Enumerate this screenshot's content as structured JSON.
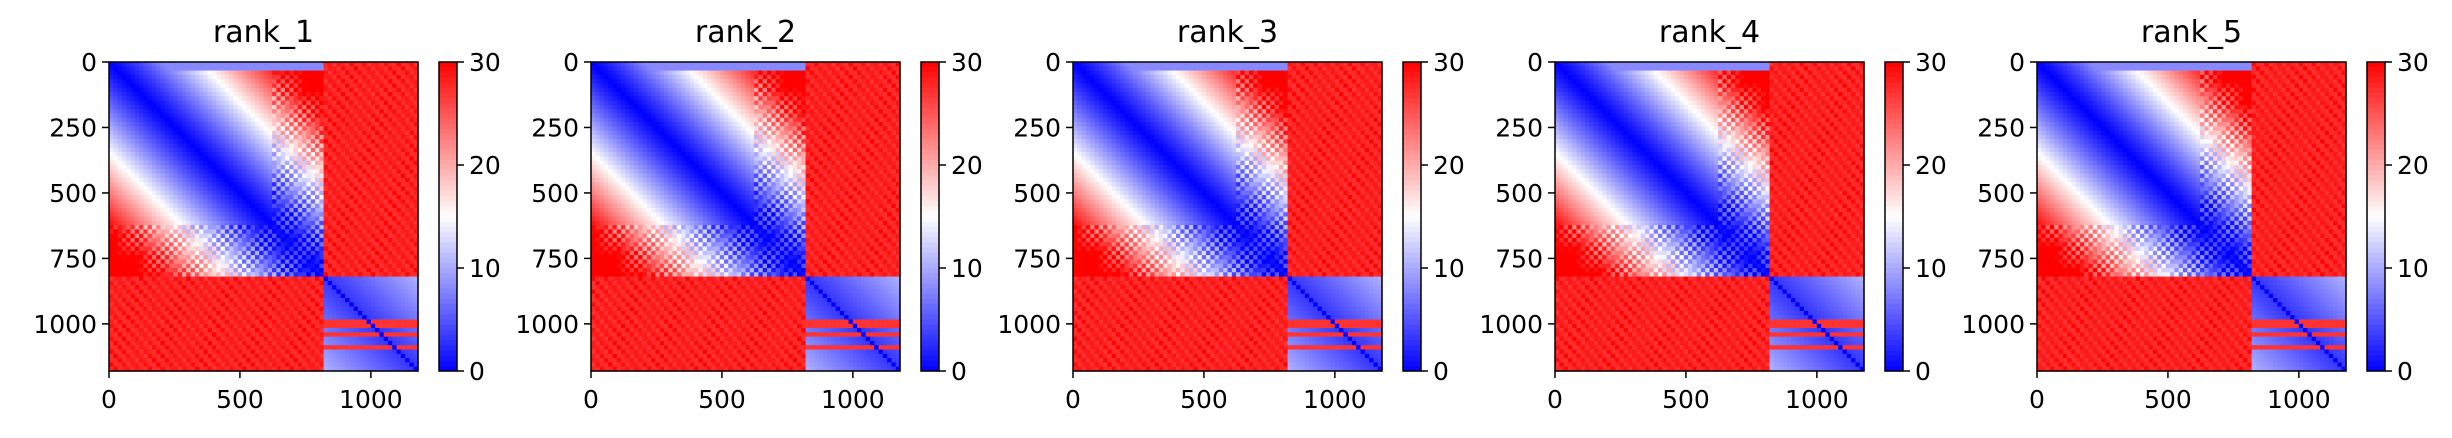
{
  "chart_data": [
    {
      "type": "heatmap",
      "title": "rank_1",
      "xlim": [
        0,
        1180
      ],
      "ylim": [
        1180,
        0
      ],
      "xticks": [
        0,
        500,
        1000
      ],
      "yticks": [
        0,
        250,
        500,
        750,
        1000
      ],
      "colorbar": {
        "min": 0,
        "max": 30,
        "ticks": [
          0,
          10,
          20,
          30
        ],
        "colormap": "bwr"
      },
      "structure": {
        "block_boundary": 820,
        "matrix_size": 1180,
        "diagonal_value": 0,
        "cross_block_value": 30,
        "bright_bands": [
          1000,
          1045,
          1090
        ]
      }
    },
    {
      "type": "heatmap",
      "title": "rank_2",
      "xlim": [
        0,
        1180
      ],
      "ylim": [
        1180,
        0
      ],
      "xticks": [
        0,
        500,
        1000
      ],
      "yticks": [
        0,
        250,
        500,
        750,
        1000
      ],
      "colorbar": {
        "min": 0,
        "max": 30,
        "ticks": [
          0,
          10,
          20,
          30
        ],
        "colormap": "bwr"
      },
      "structure": {
        "block_boundary": 820,
        "matrix_size": 1180,
        "diagonal_value": 0,
        "cross_block_value": 30,
        "bright_bands": [
          1000,
          1045,
          1090
        ]
      }
    },
    {
      "type": "heatmap",
      "title": "rank_3",
      "xlim": [
        0,
        1180
      ],
      "ylim": [
        1180,
        0
      ],
      "xticks": [
        0,
        500,
        1000
      ],
      "yticks": [
        0,
        250,
        500,
        750,
        1000
      ],
      "colorbar": {
        "min": 0,
        "max": 30,
        "ticks": [
          0,
          10,
          20,
          30
        ],
        "colormap": "bwr"
      },
      "structure": {
        "block_boundary": 820,
        "matrix_size": 1180,
        "diagonal_value": 0,
        "cross_block_value": 30,
        "bright_bands": [
          1000,
          1045,
          1090
        ]
      }
    },
    {
      "type": "heatmap",
      "title": "rank_4",
      "xlim": [
        0,
        1180
      ],
      "ylim": [
        1180,
        0
      ],
      "xticks": [
        0,
        500,
        1000
      ],
      "yticks": [
        0,
        250,
        500,
        750,
        1000
      ],
      "colorbar": {
        "min": 0,
        "max": 30,
        "ticks": [
          0,
          10,
          20,
          30
        ],
        "colormap": "bwr"
      },
      "structure": {
        "block_boundary": 820,
        "matrix_size": 1180,
        "diagonal_value": 0,
        "cross_block_value": 30,
        "bright_bands": [
          1000,
          1045,
          1090
        ]
      }
    },
    {
      "type": "heatmap",
      "title": "rank_5",
      "xlim": [
        0,
        1180
      ],
      "ylim": [
        1180,
        0
      ],
      "xticks": [
        0,
        500,
        1000
      ],
      "yticks": [
        0,
        250,
        500,
        750,
        1000
      ],
      "colorbar": {
        "min": 0,
        "max": 30,
        "ticks": [
          0,
          10,
          20,
          30
        ],
        "colormap": "bwr"
      },
      "structure": {
        "block_boundary": 820,
        "matrix_size": 1180,
        "diagonal_value": 0,
        "cross_block_value": 30,
        "bright_bands": [
          1000,
          1045,
          1090
        ]
      }
    }
  ],
  "colors": {
    "low": "#0000ff",
    "mid": "#ffffff",
    "high": "#ff0000",
    "axis": "#000000"
  }
}
